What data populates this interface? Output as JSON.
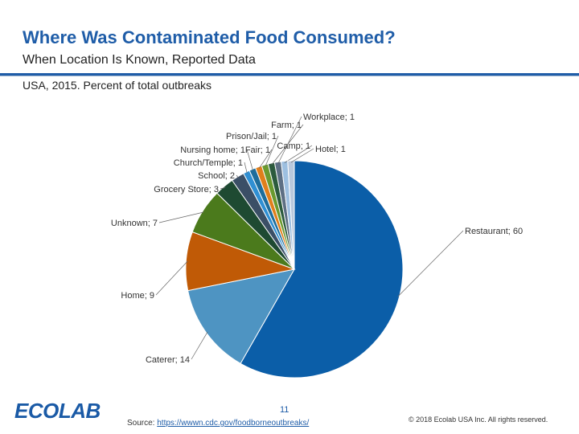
{
  "header": {
    "title": "Where Was Contaminated Food Consumed?",
    "subtitle": "When Location Is Known, Reported Data"
  },
  "context_line": "USA, 2015.  Percent of total outbreaks",
  "chart_data": {
    "type": "pie",
    "title": "",
    "slices": [
      {
        "label": "Restaurant",
        "value": 60,
        "display": "Restaurant; 60",
        "color": "#0b5ea8"
      },
      {
        "label": "Caterer",
        "value": 14,
        "display": "Caterer; 14",
        "color": "#4e94c2"
      },
      {
        "label": "Home",
        "value": 9,
        "display": "Home; 9",
        "color": "#c05a06"
      },
      {
        "label": "Unknown",
        "value": 7,
        "display": "Unknown; 7",
        "color": "#4b7a1c"
      },
      {
        "label": "Grocery Store",
        "value": 3,
        "display": "Grocery Store; 3",
        "color": "#1e4a32"
      },
      {
        "label": "School",
        "value": 2,
        "display": "School; 2",
        "color": "#3b4f66"
      },
      {
        "label": "Church/Temple",
        "value": 1,
        "display": "Church/Temple; 1",
        "color": "#2f8fd3"
      },
      {
        "label": "Nursing home",
        "value": 1,
        "display": "Nursing home; 1",
        "color": "#1d6d9c"
      },
      {
        "label": "Fair",
        "value": 1,
        "display": "Fair; 1",
        "color": "#e07f1b"
      },
      {
        "label": "Prison/Jail",
        "value": 1,
        "display": "Prison/Jail; 1",
        "color": "#6a9a2f"
      },
      {
        "label": "Farm",
        "value": 1,
        "display": "Farm; 1",
        "color": "#2c5b3d"
      },
      {
        "label": "Workplace",
        "value": 1,
        "display": "Workplace; 1",
        "color": "#5d6f84"
      },
      {
        "label": "Camp",
        "value": 1,
        "display": "Camp; 1",
        "color": "#9dbfe0"
      },
      {
        "label": "Hotel",
        "value": 1,
        "display": "Hotel; 1",
        "color": "#b9c8dc"
      }
    ]
  },
  "footer": {
    "logo_text": "ECOLAB",
    "page_number": "11",
    "source_prefix": "Source: ",
    "source_link": "https://wwwn.cdc.gov/foodborneoutbreaks/",
    "copyright": "© 2018 Ecolab USA Inc. All rights reserved."
  },
  "colors": {
    "title": "#1f5da8",
    "brand": "#1a5aa6"
  }
}
